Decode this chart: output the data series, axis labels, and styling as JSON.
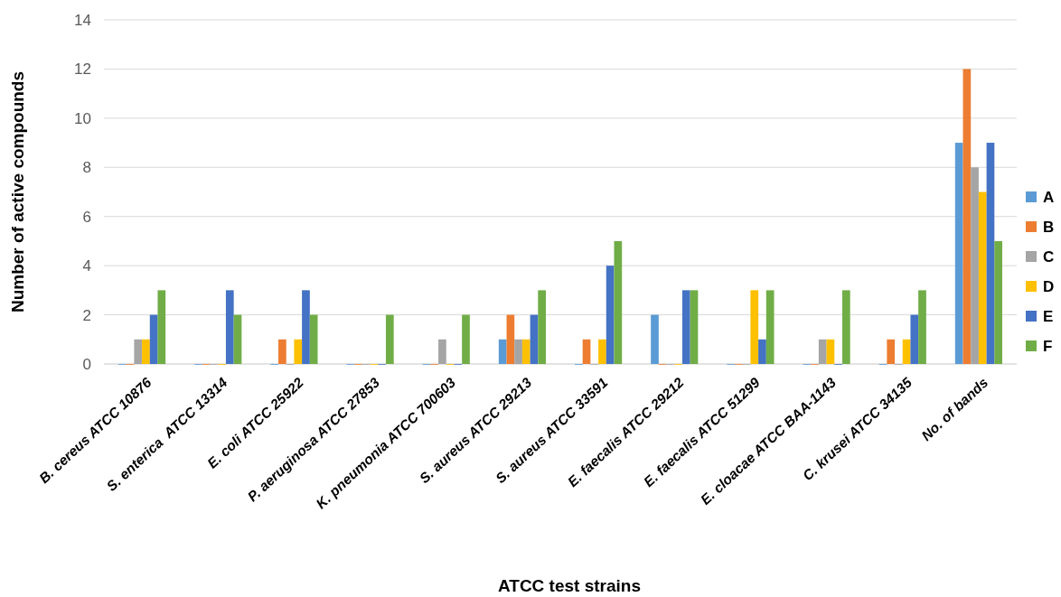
{
  "chart_data": {
    "type": "bar",
    "xlabel": "ATCC test strains",
    "ylabel": "Number of active compounds",
    "categories": [
      "B. cereus ATCC 10876",
      "S. enterica  ATCC 13314",
      "E. coli ATCC 25922",
      "P. aeruginosa ATCC 27853",
      "K. pneumonia ATCC 700603",
      "S. aureus ATCC 29213",
      "S. aureus ATCC 33591",
      "E. faecalis ATCC 29212",
      "E. faecalis ATCC 51299",
      "E. cloacae ATCC BAA-1143",
      "C. krusei ATCC 34135",
      "No. of bands"
    ],
    "series": [
      {
        "name": "A",
        "color": "#5b9bd5",
        "values": [
          0,
          0,
          0,
          0,
          0,
          1,
          0,
          2,
          0,
          0,
          0,
          9
        ]
      },
      {
        "name": "B",
        "color": "#ed7d31",
        "values": [
          0,
          0,
          1,
          0,
          0,
          2,
          1,
          0,
          0,
          0,
          1,
          12
        ]
      },
      {
        "name": "C",
        "color": "#a5a5a5",
        "values": [
          1,
          0,
          0,
          0,
          1,
          1,
          0,
          0,
          0,
          1,
          0,
          8
        ]
      },
      {
        "name": "D",
        "color": "#ffc000",
        "values": [
          1,
          0,
          1,
          0,
          0,
          1,
          1,
          0,
          3,
          1,
          1,
          7
        ]
      },
      {
        "name": "E",
        "color": "#4472c4",
        "values": [
          2,
          3,
          3,
          0,
          0,
          2,
          4,
          3,
          1,
          0,
          2,
          9
        ]
      },
      {
        "name": "F",
        "color": "#70ad47",
        "values": [
          3,
          2,
          2,
          2,
          2,
          3,
          5,
          3,
          3,
          3,
          3,
          5
        ]
      }
    ],
    "ylim": [
      0,
      14
    ],
    "yticks": [
      0,
      2,
      4,
      6,
      8,
      10,
      12,
      14
    ],
    "grid": "y",
    "legend": "right"
  }
}
